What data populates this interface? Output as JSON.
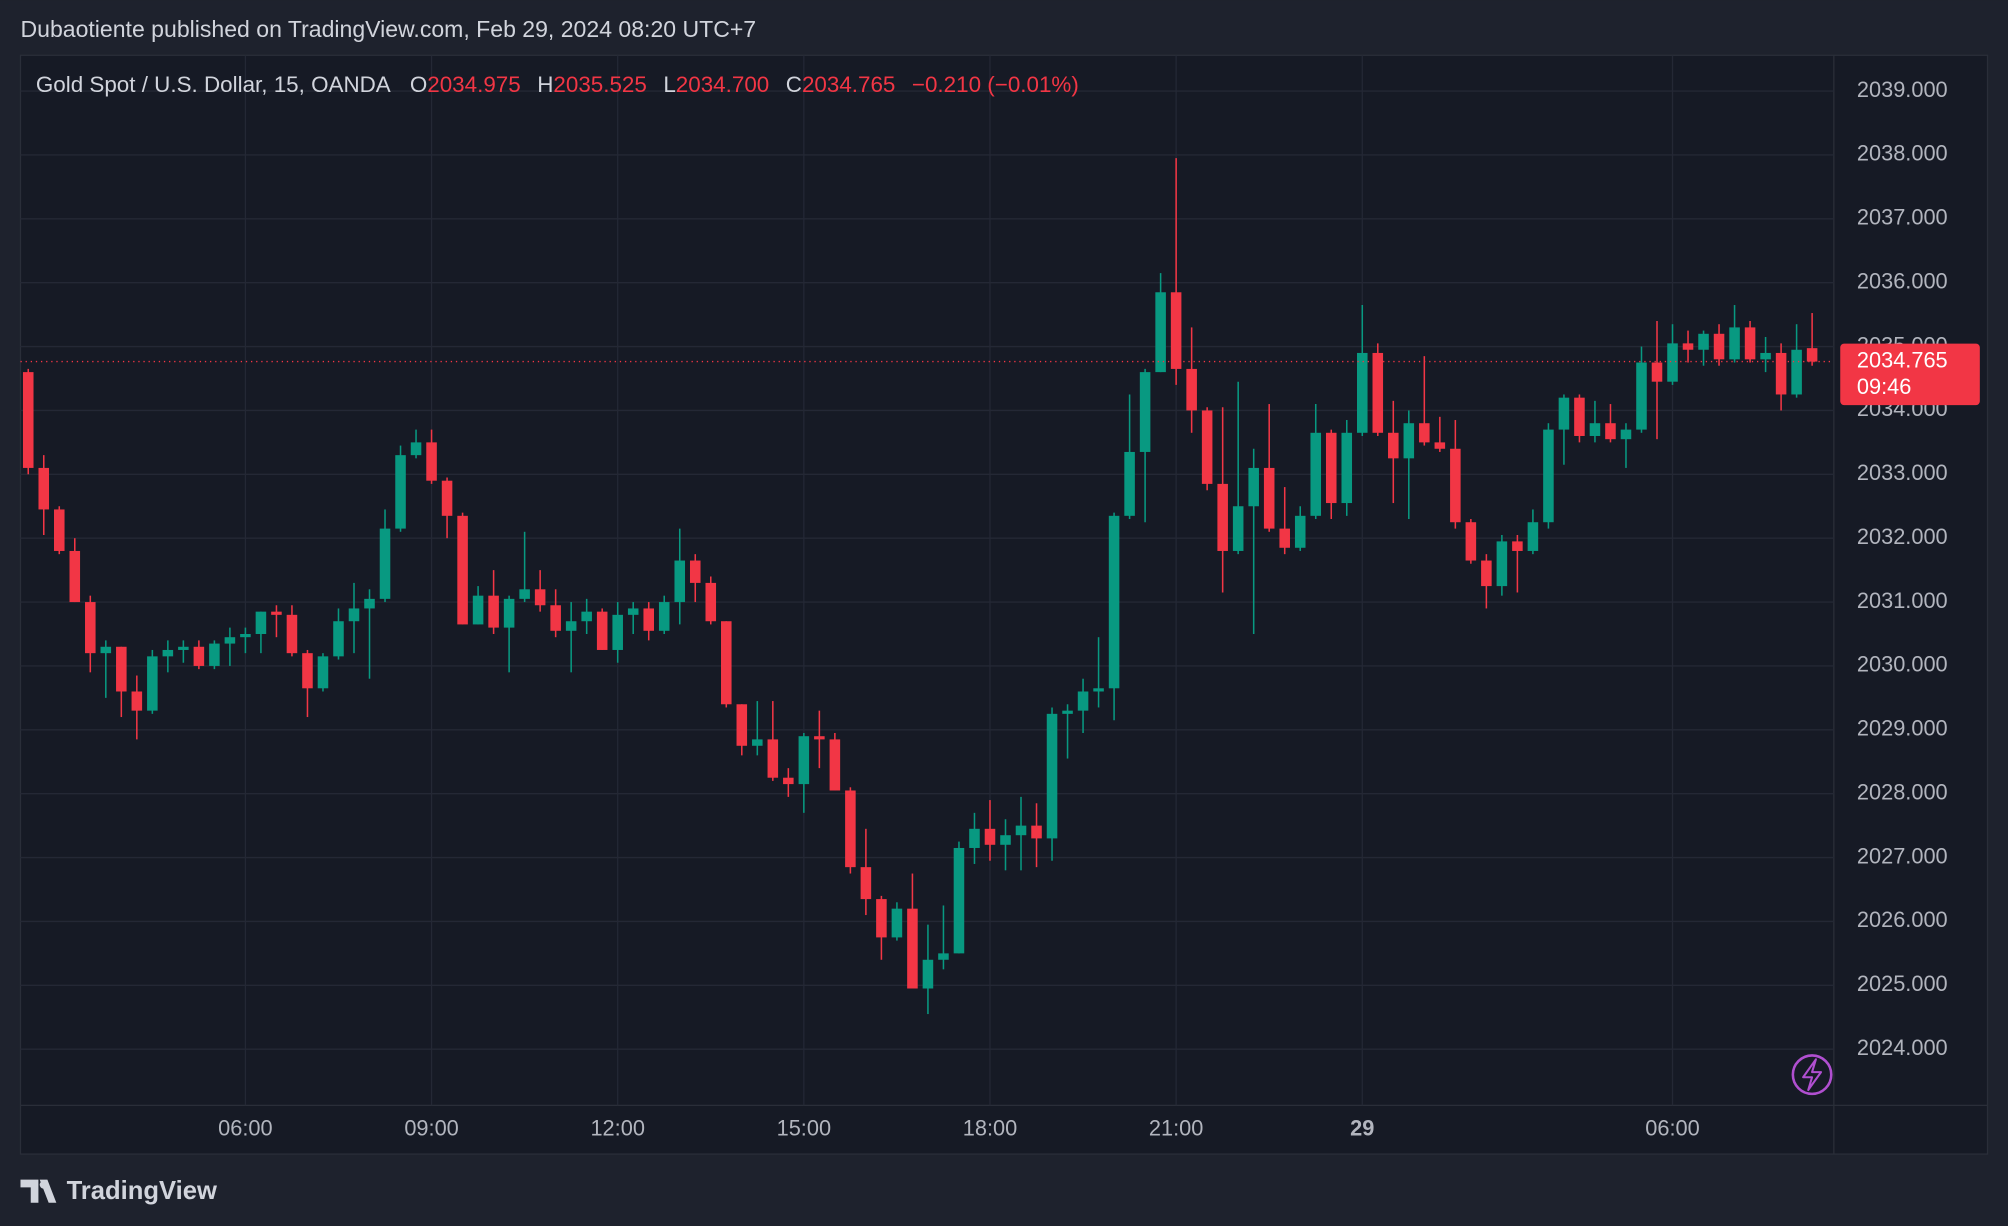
{
  "chart_data": {
    "type": "candlestick",
    "title": "Dubaotiente published on TradingView.com, Feb 29, 2024 08:20 UTC+7",
    "legend": {
      "name": "Gold Spot / U.S. Dollar, 15, OANDA",
      "open_label": "O",
      "open": "2034.975",
      "high_label": "H",
      "high": "2035.525",
      "low_label": "L",
      "low": "2034.700",
      "close_label": "C",
      "close": "2034.765",
      "change": "−0.210 (−0.01%)"
    },
    "countdown": "09:46",
    "brand": "TradingView",
    "up_color": "#089981",
    "down_color": "#f23645",
    "grid": true,
    "xlim": [
      -0.5,
      116.4
    ],
    "ylim": [
      2023.12,
      2039.56
    ],
    "xticks": [
      {
        "value": 14,
        "label": "06:00"
      },
      {
        "value": 26,
        "label": "09:00"
      },
      {
        "value": 38,
        "label": "12:00"
      },
      {
        "value": 50,
        "label": "15:00"
      },
      {
        "value": 62,
        "label": "18:00"
      },
      {
        "value": 74,
        "label": "21:00"
      },
      {
        "value": 86,
        "label": "29",
        "bold": true
      },
      {
        "value": 106,
        "label": "06:00"
      }
    ],
    "yticks": [
      {
        "value": 2024,
        "label": "2024.000"
      },
      {
        "value": 2025,
        "label": "2025.000"
      },
      {
        "value": 2026,
        "label": "2026.000"
      },
      {
        "value": 2027,
        "label": "2027.000"
      },
      {
        "value": 2028,
        "label": "2028.000"
      },
      {
        "value": 2029,
        "label": "2029.000"
      },
      {
        "value": 2030,
        "label": "2030.000"
      },
      {
        "value": 2031,
        "label": "2031.000"
      },
      {
        "value": 2032,
        "label": "2032.000"
      },
      {
        "value": 2033,
        "label": "2033.000"
      },
      {
        "value": 2034,
        "label": "2034.000"
      },
      {
        "value": 2035,
        "label": "2035.000"
      },
      {
        "value": 2036,
        "label": "2036.000"
      },
      {
        "value": 2037,
        "label": "2037.000"
      },
      {
        "value": 2038,
        "label": "2038.000"
      },
      {
        "value": 2039,
        "label": "2039.000"
      }
    ],
    "open": [
      2034.6,
      2033.1,
      2032.45,
      2031.8,
      2031.0,
      2030.2,
      2030.3,
      2029.6,
      2029.3,
      2030.15,
      2030.25,
      2030.3,
      2030.0,
      2030.35,
      2030.45,
      2030.5,
      2030.85,
      2030.8,
      2030.2,
      2029.65,
      2030.15,
      2030.7,
      2030.9,
      2031.05,
      2032.15,
      2033.3,
      2033.5,
      2032.9,
      2032.35,
      2030.65,
      2031.1,
      2030.6,
      2031.05,
      2031.2,
      2030.95,
      2030.55,
      2030.7,
      2030.85,
      2030.25,
      2030.8,
      2030.9,
      2030.55,
      2031.0,
      2031.65,
      2031.3,
      2030.7,
      2029.4,
      2028.75,
      2028.85,
      2028.25,
      2028.15,
      2028.9,
      2028.85,
      2028.05,
      2026.85,
      2026.35,
      2025.75,
      2026.2,
      2024.95,
      2025.4,
      2025.5,
      2027.15,
      2027.45,
      2027.2,
      2027.35,
      2027.5,
      2027.3,
      2029.25,
      2029.3,
      2029.6,
      2029.65,
      2032.35,
      2033.35,
      2034.6,
      2035.85,
      2034.65,
      2034.0,
      2032.85,
      2031.8,
      2032.5,
      2033.1,
      2032.15,
      2031.85,
      2032.35,
      2033.65,
      2032.55,
      2033.65,
      2034.9,
      2033.65,
      2033.25,
      2033.8,
      2033.5,
      2033.4,
      2032.25,
      2031.65,
      2031.25,
      2031.95,
      2031.8,
      2032.25,
      2033.7,
      2034.2,
      2033.6,
      2033.8,
      2033.55,
      2033.7,
      2034.75,
      2034.45,
      2035.05,
      2034.95,
      2035.2,
      2034.8,
      2035.3,
      2034.8,
      2034.9,
      2034.25,
      2034.975
    ],
    "high": [
      2034.65,
      2033.3,
      2032.5,
      2032.0,
      2031.1,
      2030.4,
      2030.3,
      2029.85,
      2030.25,
      2030.4,
      2030.4,
      2030.4,
      2030.4,
      2030.6,
      2030.6,
      2030.85,
      2030.95,
      2030.95,
      2030.25,
      2030.2,
      2030.9,
      2031.3,
      2031.2,
      2032.45,
      2033.45,
      2033.7,
      2033.7,
      2032.95,
      2032.4,
      2031.25,
      2031.5,
      2031.1,
      2032.1,
      2031.5,
      2031.2,
      2031.0,
      2031.05,
      2030.9,
      2031.0,
      2031.0,
      2031.0,
      2031.1,
      2032.15,
      2031.75,
      2031.4,
      2030.7,
      2029.4,
      2029.45,
      2029.45,
      2028.4,
      2028.95,
      2029.3,
      2028.95,
      2028.1,
      2027.45,
      2026.4,
      2026.3,
      2026.75,
      2025.95,
      2026.25,
      2027.25,
      2027.7,
      2027.9,
      2027.6,
      2027.95,
      2027.85,
      2029.35,
      2029.4,
      2029.8,
      2030.45,
      2032.4,
      2034.25,
      2034.65,
      2036.15,
      2037.95,
      2035.3,
      2034.05,
      2034.05,
      2034.45,
      2033.4,
      2034.1,
      2032.8,
      2032.5,
      2034.1,
      2033.7,
      2033.85,
      2035.65,
      2035.05,
      2034.15,
      2034.0,
      2034.85,
      2033.9,
      2033.85,
      2032.3,
      2031.75,
      2032.05,
      2032.05,
      2032.45,
      2033.8,
      2034.25,
      2034.25,
      2034.15,
      2034.1,
      2033.8,
      2035.0,
      2035.4,
      2035.35,
      2035.25,
      2035.25,
      2035.35,
      2035.65,
      2035.4,
      2035.15,
      2035.05,
      2035.35,
      2035.525
    ],
    "low": [
      2033.0,
      2032.05,
      2031.75,
      2031.0,
      2029.9,
      2029.5,
      2029.2,
      2028.85,
      2029.25,
      2029.9,
      2030.05,
      2029.95,
      2029.95,
      2030.0,
      2030.2,
      2030.2,
      2030.45,
      2030.15,
      2029.2,
      2029.6,
      2030.1,
      2030.2,
      2029.8,
      2031.0,
      2032.1,
      2033.25,
      2032.85,
      2032.0,
      2030.65,
      2030.65,
      2030.5,
      2029.9,
      2031.0,
      2030.85,
      2030.45,
      2029.9,
      2030.5,
      2030.25,
      2030.05,
      2030.5,
      2030.4,
      2030.5,
      2030.65,
      2031.0,
      2030.65,
      2029.35,
      2028.6,
      2028.6,
      2028.2,
      2027.95,
      2027.7,
      2028.4,
      2028.05,
      2026.75,
      2026.1,
      2025.4,
      2025.7,
      2024.95,
      2024.55,
      2025.25,
      2025.5,
      2026.9,
      2026.95,
      2026.8,
      2026.8,
      2026.85,
      2026.95,
      2028.55,
      2028.95,
      2029.35,
      2029.15,
      2032.3,
      2032.25,
      2034.6,
      2034.4,
      2033.65,
      2032.75,
      2031.15,
      2031.75,
      2030.5,
      2032.1,
      2031.75,
      2031.8,
      2032.3,
      2032.3,
      2032.35,
      2033.6,
      2033.6,
      2032.55,
      2032.3,
      2033.45,
      2033.35,
      2032.15,
      2031.6,
      2030.9,
      2031.1,
      2031.15,
      2031.75,
      2032.15,
      2033.15,
      2033.5,
      2033.5,
      2033.5,
      2033.1,
      2033.65,
      2033.55,
      2034.4,
      2034.75,
      2034.7,
      2034.7,
      2034.75,
      2034.75,
      2034.6,
      2034.0,
      2034.2,
      2034.7
    ],
    "close": [
      2033.1,
      2032.45,
      2031.8,
      2031.0,
      2030.2,
      2030.3,
      2029.6,
      2029.3,
      2030.15,
      2030.25,
      2030.3,
      2030.0,
      2030.35,
      2030.45,
      2030.5,
      2030.85,
      2030.8,
      2030.2,
      2029.65,
      2030.15,
      2030.7,
      2030.9,
      2031.05,
      2032.15,
      2033.3,
      2033.5,
      2032.9,
      2032.35,
      2030.65,
      2031.1,
      2030.6,
      2031.05,
      2031.2,
      2030.95,
      2030.55,
      2030.7,
      2030.85,
      2030.25,
      2030.8,
      2030.9,
      2030.55,
      2031.0,
      2031.65,
      2031.3,
      2030.7,
      2029.4,
      2028.75,
      2028.85,
      2028.25,
      2028.15,
      2028.9,
      2028.85,
      2028.05,
      2026.85,
      2026.35,
      2025.75,
      2026.2,
      2024.95,
      2025.4,
      2025.5,
      2027.15,
      2027.45,
      2027.2,
      2027.35,
      2027.5,
      2027.3,
      2029.25,
      2029.3,
      2029.6,
      2029.65,
      2032.35,
      2033.35,
      2034.6,
      2035.85,
      2034.65,
      2034.0,
      2032.85,
      2031.8,
      2032.5,
      2033.1,
      2032.15,
      2031.85,
      2032.35,
      2033.65,
      2032.55,
      2033.65,
      2034.9,
      2033.65,
      2033.25,
      2033.8,
      2033.5,
      2033.4,
      2032.25,
      2031.65,
      2031.25,
      2031.95,
      2031.8,
      2032.25,
      2033.7,
      2034.2,
      2033.6,
      2033.8,
      2033.55,
      2033.7,
      2034.75,
      2034.45,
      2035.05,
      2034.95,
      2035.2,
      2034.8,
      2035.3,
      2034.8,
      2034.9,
      2034.25,
      2034.95,
      2034.765
    ]
  }
}
